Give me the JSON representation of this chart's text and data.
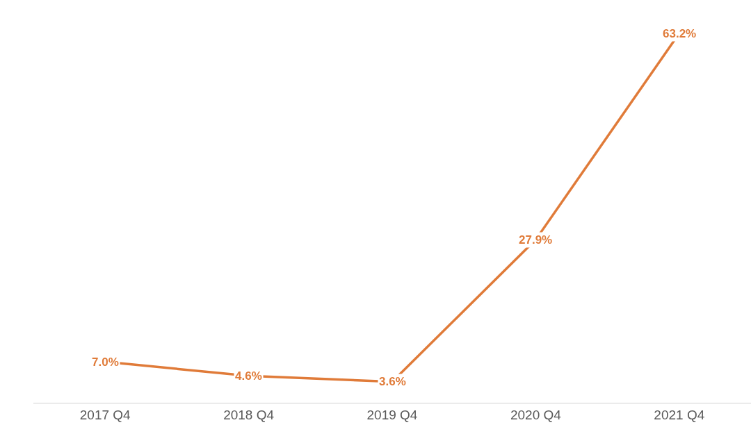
{
  "chart_data": {
    "type": "line",
    "categories": [
      "2017 Q4",
      "2018 Q4",
      "2019 Q4",
      "2020 Q4",
      "2021 Q4"
    ],
    "series": [
      {
        "color": "#e07b39",
        "values": [
          7.0,
          4.6,
          3.6,
          27.9,
          63.2
        ],
        "value_labels": [
          "7.0%",
          "4.6%",
          "3.6%",
          "27.9%",
          "63.2%"
        ]
      }
    ],
    "tick_labels": "x",
    "grid": false,
    "legend": false,
    "line_style": "solid"
  }
}
